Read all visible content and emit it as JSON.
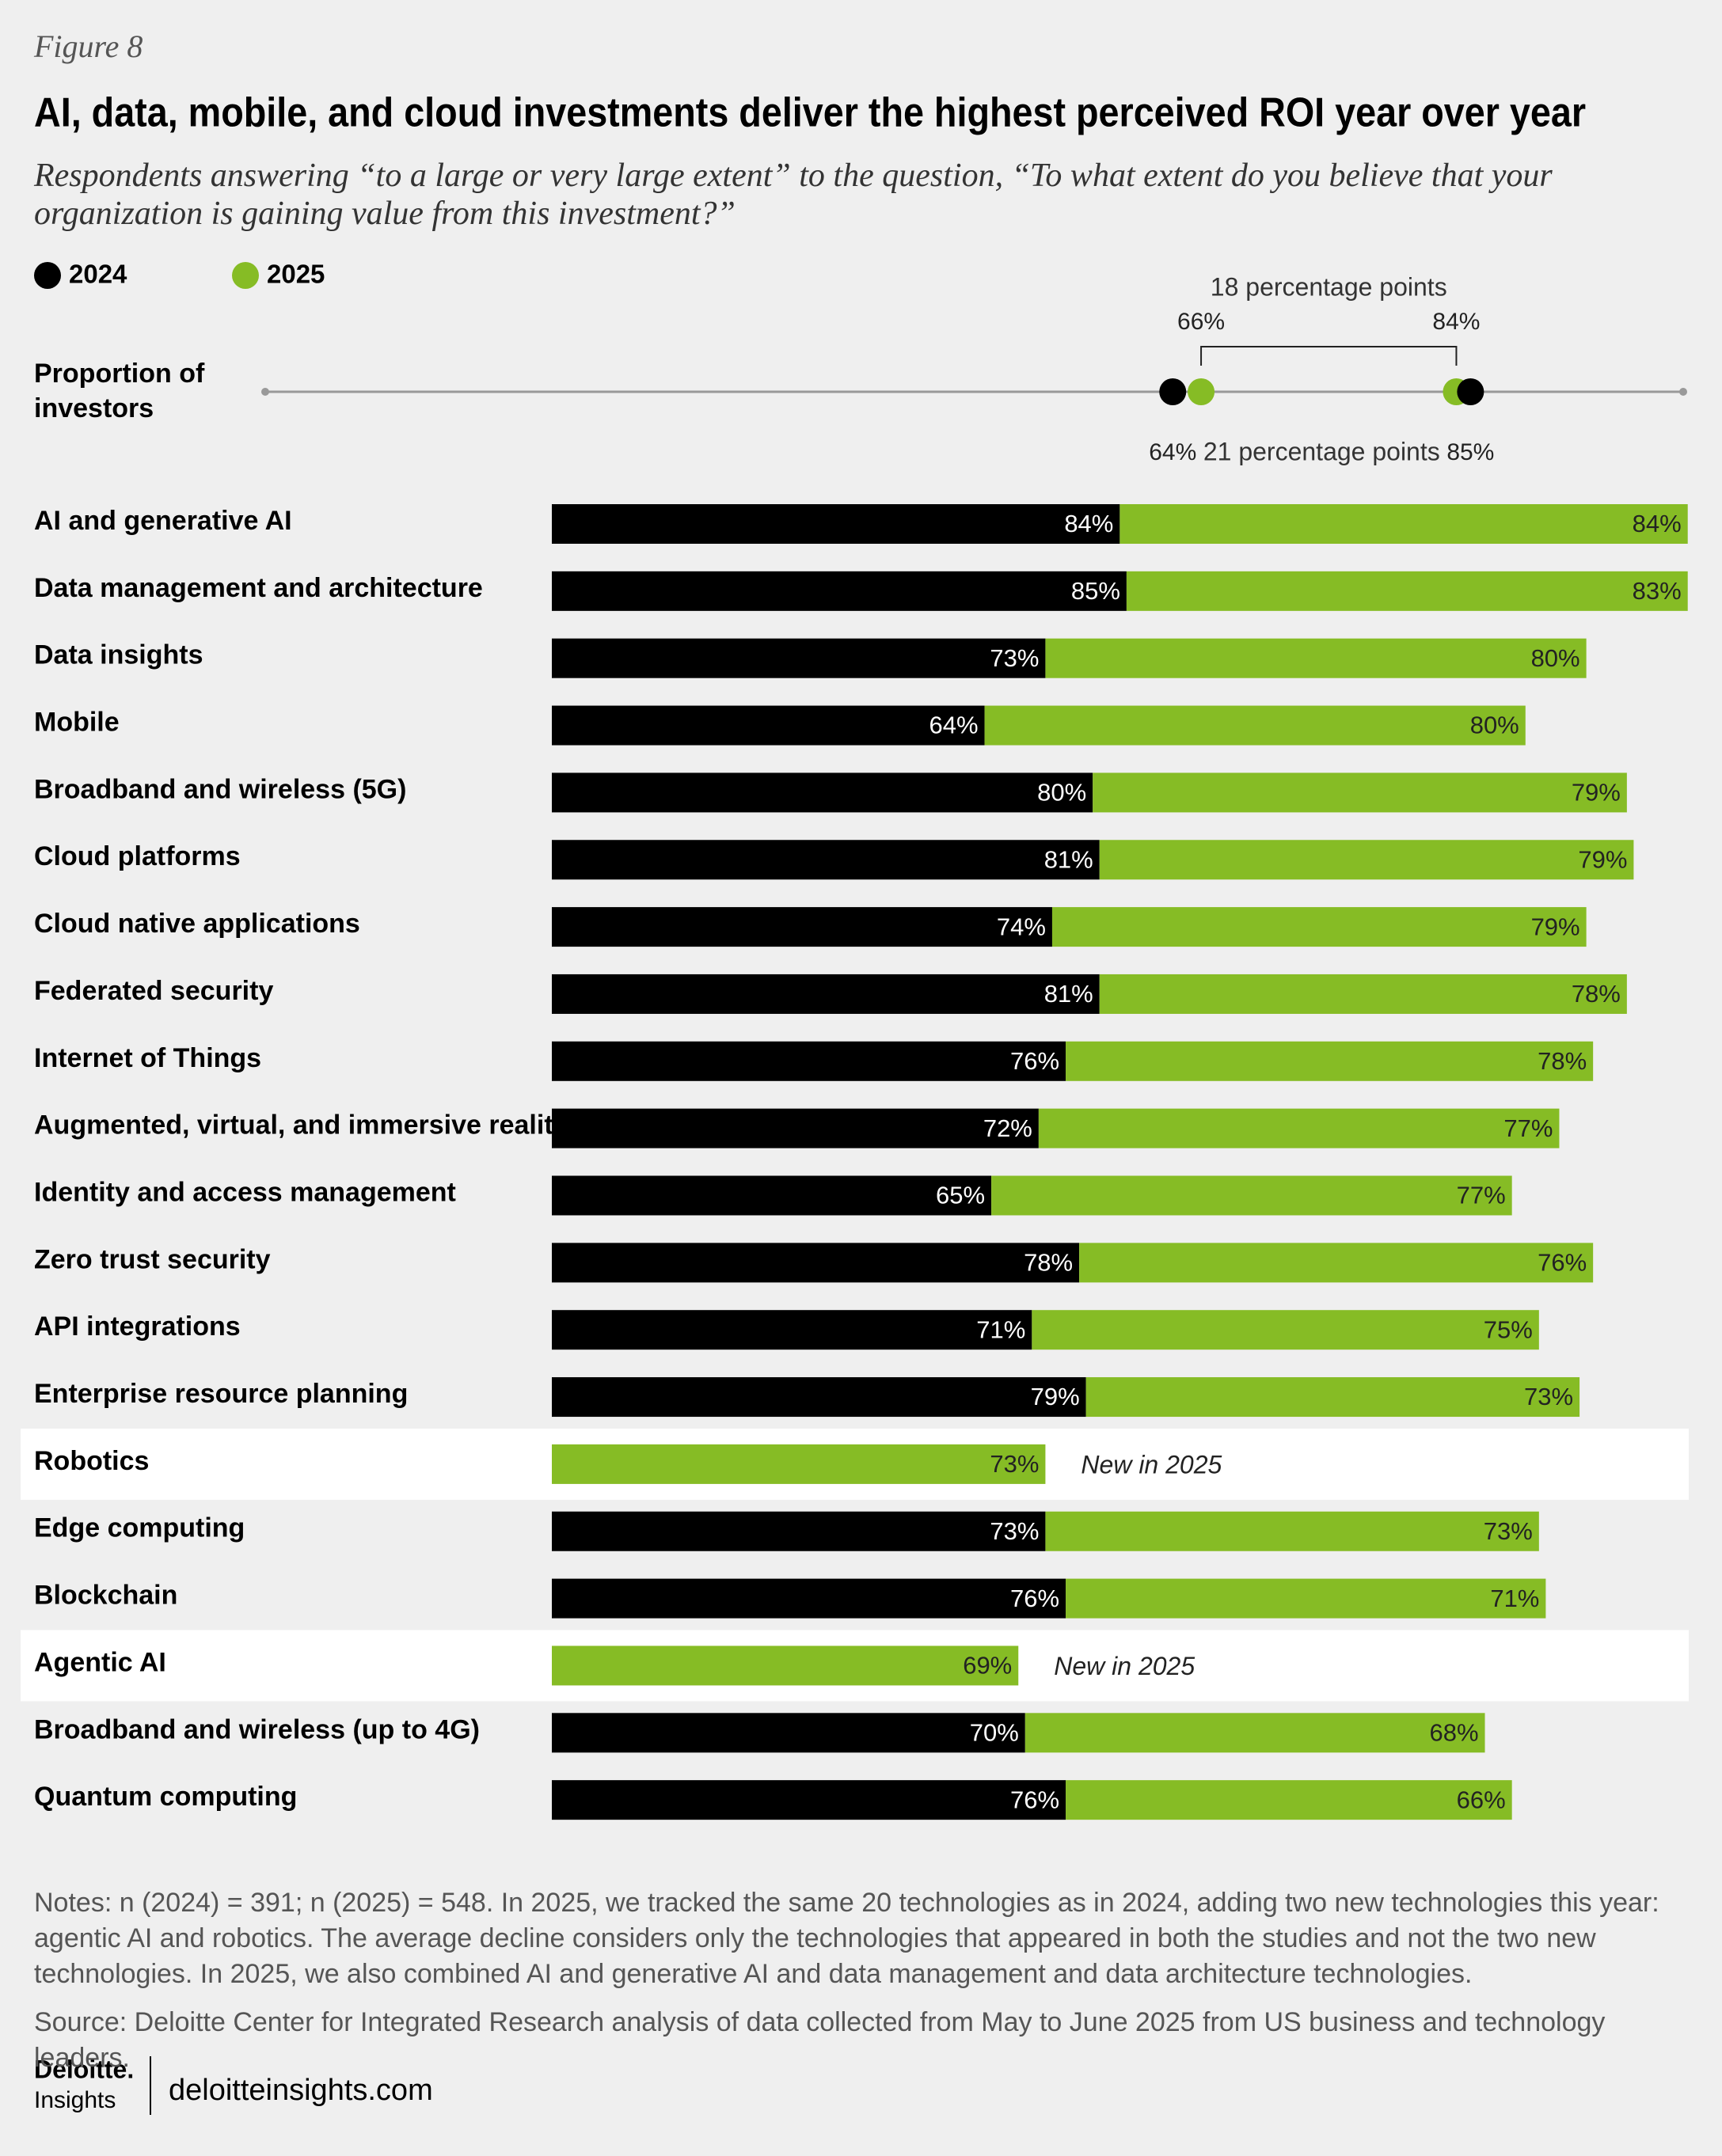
{
  "figure_label": "Figure 8",
  "title": "AI, data, mobile, and cloud investments deliver the highest perceived ROI year over year",
  "subtitle": "Respondents answering “to a large or very large extent” to the question, “To what extent do you believe that your organization is gaining value from this investment?”",
  "chart_data": [
    {
      "type": "range",
      "label": "Proportion of investors",
      "xlim": [
        0,
        100
      ],
      "series": [
        {
          "color": "#000000",
          "values": [
            64,
            85
          ],
          "value_labels": [
            "64%",
            "85%"
          ],
          "span_label": "21 percentage points"
        },
        {
          "color": "#86bc25",
          "values": [
            66,
            84
          ],
          "value_labels": [
            "66%",
            "84%"
          ],
          "span_label": "18 percentage points"
        }
      ]
    },
    {
      "type": "stacked-bar",
      "categories": [
        "AI and generative AI",
        "Data management  and architecture",
        "Data insights",
        "Mobile",
        "Broadband and wireless (5G)",
        "Cloud platforms",
        "Cloud native applications",
        "Federated security",
        "Internet of Things",
        "Augmented, virtual, and immersive reality",
        "Identity and access management",
        "Zero trust security",
        "API integrations",
        "Enterprise resource planning",
        "Robotics",
        "Edge computing",
        "Blockchain",
        "Agentic AI",
        "Broadband and wireless (up to 4G)",
        "Quantum computing"
      ],
      "category_notes": [
        null,
        null,
        null,
        null,
        null,
        null,
        null,
        null,
        null,
        null,
        null,
        null,
        null,
        null,
        "New in 2025",
        null,
        null,
        "New in 2025",
        null,
        null
      ],
      "series": [
        {
          "name": "2024",
          "color": "#000000",
          "values": [
            84,
            85,
            73,
            64,
            80,
            81,
            74,
            81,
            76,
            72,
            65,
            78,
            71,
            79,
            null,
            73,
            76,
            null,
            70,
            76
          ],
          "value_labels": [
            "84%",
            "85%",
            "73%",
            "64%",
            "80%",
            "81%",
            "74%",
            "81%",
            "76%",
            "72%",
            "65%",
            "78%",
            "71%",
            "79%",
            null,
            "73%",
            "76%",
            null,
            "70%",
            "76%"
          ]
        },
        {
          "name": "2025",
          "color": "#86bc25",
          "values": [
            84,
            83,
            80,
            80,
            79,
            79,
            79,
            78,
            78,
            77,
            77,
            76,
            75,
            73,
            73,
            73,
            71,
            69,
            68,
            66
          ],
          "value_labels": [
            "84%",
            "83%",
            "80%",
            "80%",
            "79%",
            "79%",
            "79%",
            "78%",
            "78%",
            "77%",
            "77%",
            "76%",
            "75%",
            "73%",
            "73%",
            "73%",
            "71%",
            "69%",
            "68%",
            "66%"
          ]
        }
      ]
    }
  ],
  "footer": {
    "notes": "Notes: n (2024) = 391; n (2025) = 548. In 2025, we tracked the same 20 technologies as in 2024, adding two new technologies this year: agentic AI and robotics. The average decline considers only the technologies that appeared in both the studies and not the two new technologies. In 2025, we also combined AI and generative AI and data management and data architecture technologies.",
    "source": "Source: Deloitte Center for Integrated Research analysis of data collected from May to June 2025 from US business and technology leaders.",
    "logo": "Deloitte.",
    "logo_sub": "Insights",
    "url": "deloitteinsights.com"
  }
}
